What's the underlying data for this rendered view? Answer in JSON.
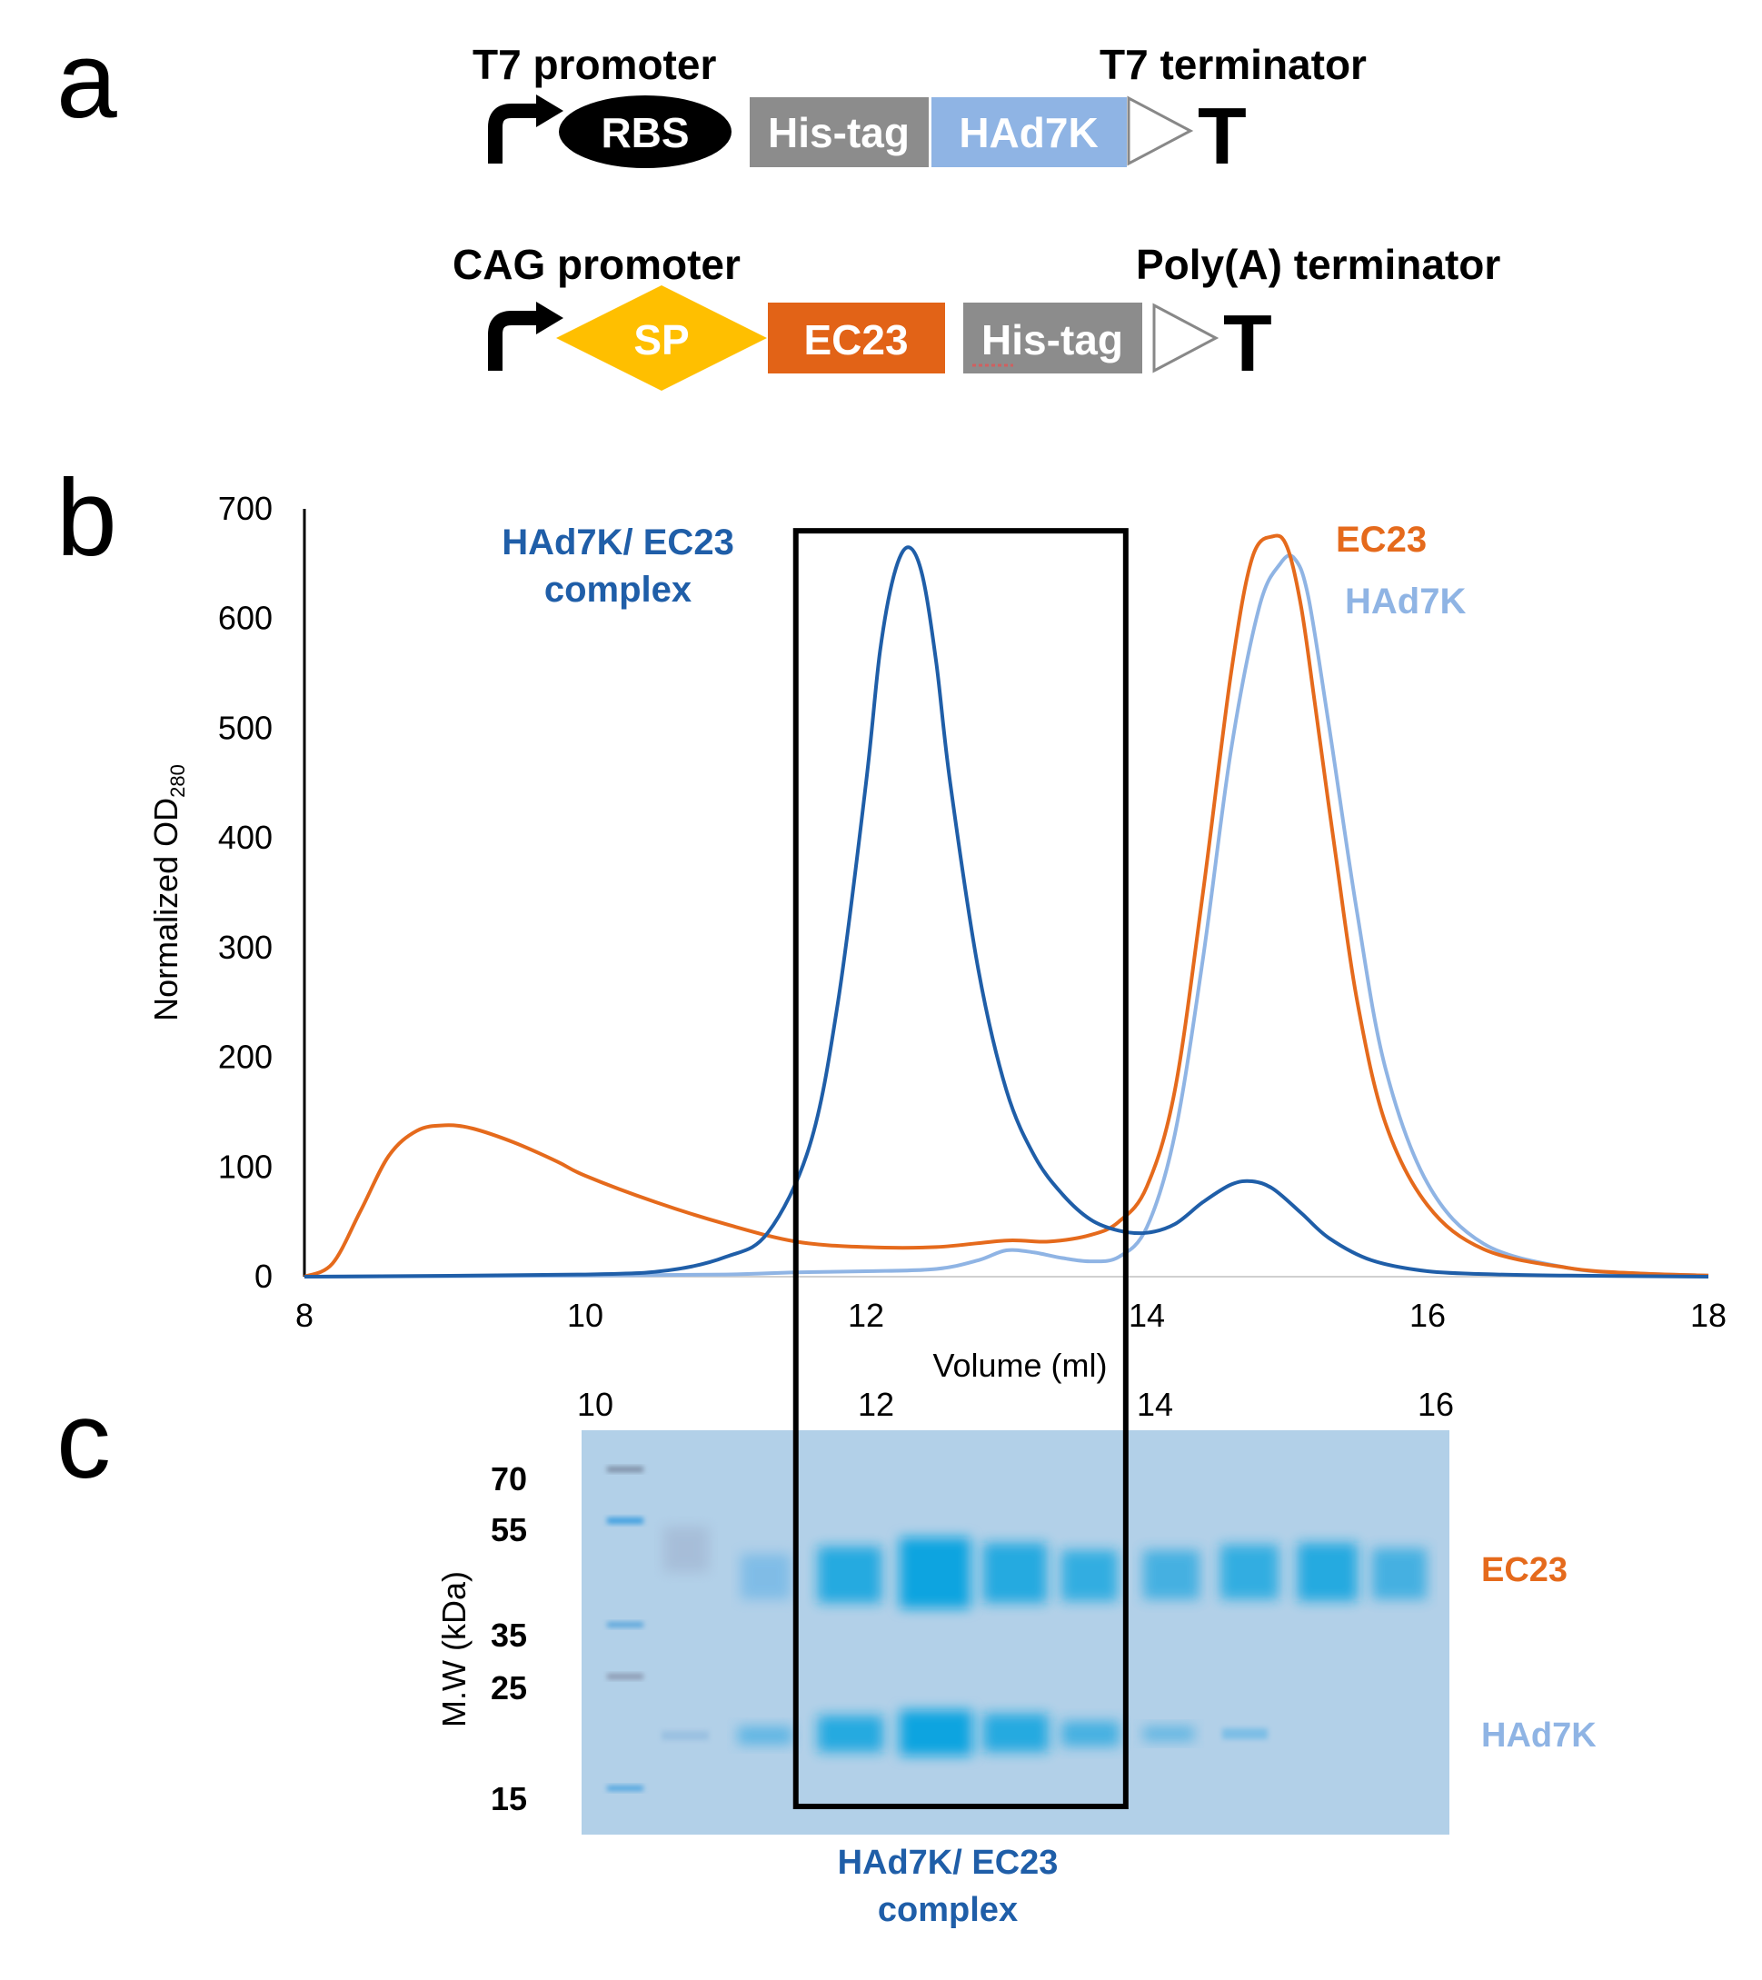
{
  "panels": {
    "a": "a",
    "b": "b",
    "c": "c"
  },
  "colors": {
    "complex": "#1f5ea8",
    "ec23": "#e56a1c",
    "had7k": "#8fb4e4",
    "his_tag": "#8c8c8c",
    "sp": "#ffbf00",
    "ec23_box": "#e26317",
    "had7k_box": "#8fb4e4",
    "rbs": "#000000",
    "gel_bg": "#a9cbe6",
    "gel_band": "#14a6e0"
  },
  "construct1": {
    "promoter": "T7 promoter",
    "terminator": "T7 terminator",
    "parts": [
      "RBS",
      "His-tag",
      "HAd7K"
    ],
    "terminator_symbol": "T"
  },
  "construct2": {
    "promoter": "CAG promoter",
    "terminator": "Poly(A) terminator",
    "parts": [
      "SP",
      "EC23",
      "His-tag"
    ],
    "terminator_symbol": "T"
  },
  "chart_data": {
    "type": "line",
    "xlabel": "Volume (ml)",
    "ylabel": "Normalized OD",
    "ylabel_sub": "280",
    "xlim": [
      8,
      18
    ],
    "ylim": [
      0,
      700
    ],
    "xticks": [
      8,
      10,
      12,
      14,
      16,
      18
    ],
    "yticks": [
      0,
      100,
      200,
      300,
      400,
      500,
      600,
      700
    ],
    "highlight_range": [
      11.5,
      13.85
    ],
    "highlight_top": 680,
    "annotations": [
      "HAd7K/ EC23",
      "complex"
    ],
    "series": [
      {
        "name": "HAd7K/ EC23 complex",
        "color": "#1f5ea8",
        "x": [
          8.0,
          10.0,
          10.6,
          11.0,
          11.3,
          11.6,
          11.8,
          12.0,
          12.1,
          12.2,
          12.3,
          12.4,
          12.5,
          12.6,
          12.8,
          13.0,
          13.2,
          13.4,
          13.6,
          13.8,
          14.0,
          14.2,
          14.4,
          14.6,
          14.75,
          14.9,
          15.1,
          15.3,
          15.6,
          16.0,
          16.5,
          17.0,
          18.0
        ],
        "y": [
          0,
          2,
          6,
          18,
          40,
          120,
          250,
          450,
          570,
          640,
          665,
          640,
          560,
          450,
          280,
          170,
          110,
          75,
          52,
          42,
          40,
          48,
          68,
          84,
          87,
          80,
          58,
          35,
          15,
          5,
          2,
          1,
          0
        ]
      },
      {
        "name": "EC23",
        "color": "#e56a1c",
        "x": [
          8.0,
          8.2,
          8.4,
          8.6,
          8.8,
          9.0,
          9.2,
          9.5,
          9.8,
          10.0,
          10.5,
          11.0,
          11.5,
          12.0,
          12.5,
          13.0,
          13.3,
          13.6,
          13.8,
          14.0,
          14.2,
          14.4,
          14.6,
          14.75,
          14.9,
          15.0,
          15.1,
          15.2,
          15.35,
          15.5,
          15.7,
          16.0,
          16.4,
          17.0,
          17.5,
          18.0
        ],
        "y": [
          0,
          12,
          60,
          110,
          133,
          138,
          135,
          122,
          105,
          92,
          68,
          48,
          32,
          27,
          27,
          33,
          32,
          38,
          50,
          82,
          170,
          350,
          550,
          655,
          675,
          665,
          610,
          520,
          380,
          250,
          140,
          65,
          25,
          8,
          3,
          1
        ]
      },
      {
        "name": "HAd7K",
        "color": "#8fb4e4",
        "x": [
          8.0,
          10.0,
          11.0,
          11.5,
          12.0,
          12.5,
          12.8,
          13.0,
          13.2,
          13.4,
          13.6,
          13.8,
          14.0,
          14.2,
          14.4,
          14.6,
          14.8,
          14.95,
          15.05,
          15.15,
          15.3,
          15.5,
          15.7,
          16.0,
          16.4,
          17.0,
          17.5,
          18.0
        ],
        "y": [
          0,
          1,
          2,
          4,
          5,
          7,
          15,
          24,
          22,
          17,
          14,
          18,
          45,
          130,
          290,
          480,
          610,
          650,
          655,
          620,
          500,
          330,
          190,
          85,
          30,
          8,
          3,
          1
        ]
      }
    ]
  },
  "gel": {
    "axis_ticks": [
      "10",
      "12",
      "14",
      "16"
    ],
    "ylabel": "M.W (kDa)",
    "mw_markers": [
      "70",
      "55",
      "35",
      "25",
      "15"
    ],
    "band_labels": {
      "ec23": "EC23",
      "had7k": "HAd7K"
    },
    "caption": [
      "HAd7K/ EC23",
      "complex"
    ]
  }
}
